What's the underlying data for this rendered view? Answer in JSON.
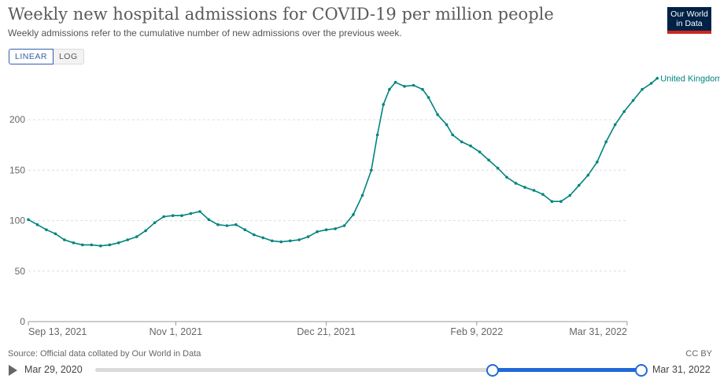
{
  "header": {
    "title": "Weekly new hospital admissions for COVID-19 per million people",
    "subtitle": "Weekly admissions refer to the cumulative number of new admissions over the previous week.",
    "logo_line1": "Our World",
    "logo_line2": "in Data"
  },
  "scale_toggle": {
    "linear_label": "LINEAR",
    "log_label": "LOG",
    "selected": "LINEAR"
  },
  "footer": {
    "source": "Source: Official data collated by Our World in Data",
    "license": "CC BY"
  },
  "timeline": {
    "start_label": "Mar 29, 2020",
    "end_label": "Mar 31, 2022",
    "selected_start": "Sep 13, 2021",
    "selected_end": "Mar 31, 2022"
  },
  "colors": {
    "series": "#00847e",
    "grid": "#dddddd",
    "axis": "#999999",
    "slider": "#2069d8"
  },
  "chart_data": {
    "type": "line",
    "title": "Weekly new hospital admissions for COVID-19 per million people",
    "ylim": [
      0,
      240
    ],
    "yticks": [
      0,
      50,
      100,
      150,
      200
    ],
    "xtick_labels": [
      "Sep 13, 2021",
      "Nov 1, 2021",
      "Dec 21, 2021",
      "Feb 9, 2022",
      "Mar 31, 2022"
    ],
    "xtick_dates": [
      "2021-09-13",
      "2021-11-01",
      "2021-12-21",
      "2022-02-09",
      "2022-03-31"
    ],
    "grid": true,
    "legend": "end-of-line label",
    "series": [
      {
        "name": "United Kingdom",
        "points": [
          [
            "2021-09-13",
            101
          ],
          [
            "2021-09-16",
            96
          ],
          [
            "2021-09-19",
            91
          ],
          [
            "2021-09-22",
            87
          ],
          [
            "2021-09-25",
            81
          ],
          [
            "2021-09-28",
            78
          ],
          [
            "2021-10-01",
            76
          ],
          [
            "2021-10-04",
            76
          ],
          [
            "2021-10-07",
            75
          ],
          [
            "2021-10-10",
            76
          ],
          [
            "2021-10-13",
            78
          ],
          [
            "2021-10-16",
            81
          ],
          [
            "2021-10-19",
            84
          ],
          [
            "2021-10-22",
            90
          ],
          [
            "2021-10-25",
            98
          ],
          [
            "2021-10-28",
            104
          ],
          [
            "2021-10-31",
            105
          ],
          [
            "2021-11-03",
            105
          ],
          [
            "2021-11-06",
            107
          ],
          [
            "2021-11-09",
            109
          ],
          [
            "2021-11-12",
            101
          ],
          [
            "2021-11-15",
            96
          ],
          [
            "2021-11-18",
            95
          ],
          [
            "2021-11-21",
            96
          ],
          [
            "2021-11-24",
            91
          ],
          [
            "2021-11-27",
            86
          ],
          [
            "2021-11-30",
            83
          ],
          [
            "2021-12-03",
            80
          ],
          [
            "2021-12-06",
            79
          ],
          [
            "2021-12-09",
            80
          ],
          [
            "2021-12-12",
            81
          ],
          [
            "2021-12-15",
            84
          ],
          [
            "2021-12-18",
            89
          ],
          [
            "2021-12-21",
            91
          ],
          [
            "2021-12-24",
            92
          ],
          [
            "2021-12-27",
            95
          ],
          [
            "2021-12-30",
            106
          ],
          [
            "2022-01-02",
            125
          ],
          [
            "2022-01-05",
            150
          ],
          [
            "2022-01-07",
            185
          ],
          [
            "2022-01-09",
            215
          ],
          [
            "2022-01-11",
            230
          ],
          [
            "2022-01-13",
            237
          ],
          [
            "2022-01-16",
            233
          ],
          [
            "2022-01-19",
            234
          ],
          [
            "2022-01-22",
            230
          ],
          [
            "2022-01-24",
            222
          ],
          [
            "2022-01-27",
            205
          ],
          [
            "2022-01-30",
            195
          ],
          [
            "2022-02-01",
            185
          ],
          [
            "2022-02-04",
            178
          ],
          [
            "2022-02-07",
            174
          ],
          [
            "2022-02-10",
            168
          ],
          [
            "2022-02-13",
            160
          ],
          [
            "2022-02-16",
            152
          ],
          [
            "2022-02-19",
            143
          ],
          [
            "2022-02-22",
            137
          ],
          [
            "2022-02-25",
            133
          ],
          [
            "2022-02-28",
            130
          ],
          [
            "2022-03-03",
            126
          ],
          [
            "2022-03-06",
            119
          ],
          [
            "2022-03-09",
            119
          ],
          [
            "2022-03-12",
            125
          ],
          [
            "2022-03-15",
            135
          ],
          [
            "2022-03-18",
            145
          ],
          [
            "2022-03-21",
            158
          ],
          [
            "2022-03-24",
            178
          ],
          [
            "2022-03-27",
            195
          ],
          [
            "2022-03-30",
            208
          ],
          [
            "2022-04-02",
            219
          ],
          [
            "2022-04-05",
            230
          ],
          [
            "2022-04-08",
            236
          ],
          [
            "2022-04-10",
            241
          ]
        ]
      }
    ]
  }
}
